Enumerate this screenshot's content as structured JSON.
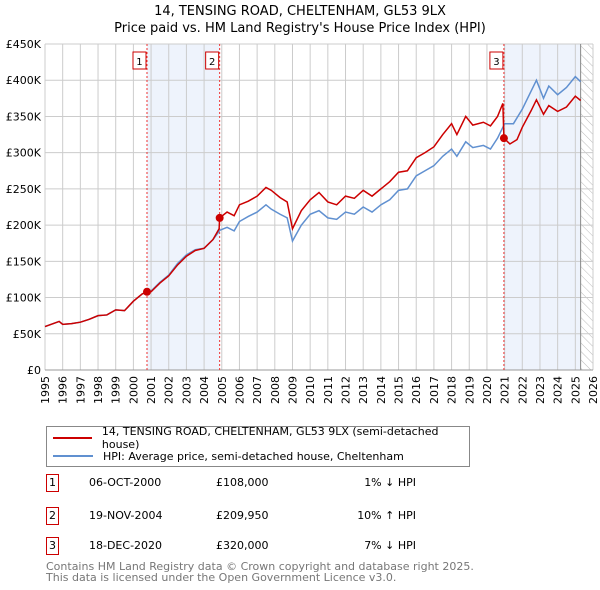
{
  "title": "14, TENSING ROAD, CHELTENHAM, GL53 9LX",
  "subtitle": "Price paid vs. HM Land Registry's House Price Index (HPI)",
  "colors": {
    "property": "#cc0000",
    "hpi": "#6090d0",
    "shade": "#eef3fc"
  },
  "chart_data": {
    "type": "line",
    "xlim": [
      1995,
      2026
    ],
    "ylim": [
      0,
      450000
    ],
    "x_ticks": [
      "1995",
      "1996",
      "1997",
      "1998",
      "1999",
      "2000",
      "2001",
      "2002",
      "2003",
      "2004",
      "2005",
      "2006",
      "2007",
      "2008",
      "2009",
      "2010",
      "2011",
      "2012",
      "2013",
      "2014",
      "2015",
      "2016",
      "2017",
      "2018",
      "2019",
      "2020",
      "2021",
      "2022",
      "2023",
      "2024",
      "2025",
      "2026"
    ],
    "y_ticks": [
      {
        "v": 0,
        "label": "£0"
      },
      {
        "v": 50000,
        "label": "£50K"
      },
      {
        "v": 100000,
        "label": "£100K"
      },
      {
        "v": 150000,
        "label": "£150K"
      },
      {
        "v": 200000,
        "label": "£200K"
      },
      {
        "v": 250000,
        "label": "£250K"
      },
      {
        "v": 300000,
        "label": "£300K"
      },
      {
        "v": 350000,
        "label": "£350K"
      },
      {
        "v": 400000,
        "label": "£400K"
      },
      {
        "v": 450000,
        "label": "£450K"
      }
    ],
    "grid": true,
    "forecast_from": 2025.3,
    "series": [
      {
        "name": "14, TENSING ROAD, CHELTENHAM, GL53 9LX (semi-detached house)",
        "color": "#cc0000",
        "points": [
          [
            1995,
            60
          ],
          [
            1995.8,
            67
          ],
          [
            1996,
            63
          ],
          [
            1996.5,
            64
          ],
          [
            1997,
            66
          ],
          [
            1997.5,
            70
          ],
          [
            1998,
            75
          ],
          [
            1998.5,
            76
          ],
          [
            1999,
            83
          ],
          [
            1999.5,
            82
          ],
          [
            2000,
            95
          ],
          [
            2000.5,
            105
          ],
          [
            2000.77,
            108
          ],
          [
            2001,
            108
          ],
          [
            2001.5,
            120
          ],
          [
            2002,
            130
          ],
          [
            2002.5,
            145
          ],
          [
            2003,
            157
          ],
          [
            2003.5,
            165
          ],
          [
            2004,
            168
          ],
          [
            2004.5,
            180
          ],
          [
            2004.85,
            195
          ],
          [
            2004.88,
            210
          ],
          [
            2005.3,
            218
          ],
          [
            2005.7,
            213
          ],
          [
            2006,
            228
          ],
          [
            2006.5,
            233
          ],
          [
            2007,
            240
          ],
          [
            2007.5,
            252
          ],
          [
            2007.8,
            248
          ],
          [
            2008.3,
            238
          ],
          [
            2008.7,
            232
          ],
          [
            2009,
            195
          ],
          [
            2009.5,
            220
          ],
          [
            2010,
            235
          ],
          [
            2010.5,
            245
          ],
          [
            2011,
            232
          ],
          [
            2011.5,
            228
          ],
          [
            2012,
            240
          ],
          [
            2012.5,
            237
          ],
          [
            2013,
            248
          ],
          [
            2013.5,
            240
          ],
          [
            2014,
            250
          ],
          [
            2014.5,
            260
          ],
          [
            2015,
            273
          ],
          [
            2015.5,
            275
          ],
          [
            2016,
            293
          ],
          [
            2016.5,
            300
          ],
          [
            2017,
            308
          ],
          [
            2017.5,
            325
          ],
          [
            2018,
            340
          ],
          [
            2018.3,
            325
          ],
          [
            2018.8,
            350
          ],
          [
            2019.2,
            338
          ],
          [
            2019.8,
            342
          ],
          [
            2020.2,
            337
          ],
          [
            2020.6,
            350
          ],
          [
            2020.9,
            368
          ],
          [
            2020.96,
            320
          ],
          [
            2021.3,
            312
          ],
          [
            2021.7,
            318
          ],
          [
            2022,
            335
          ],
          [
            2022.5,
            358
          ],
          [
            2022.8,
            373
          ],
          [
            2023.2,
            353
          ],
          [
            2023.5,
            365
          ],
          [
            2024,
            357
          ],
          [
            2024.5,
            363
          ],
          [
            2025,
            378
          ],
          [
            2025.3,
            372
          ]
        ]
      },
      {
        "name": "HPI: Average price, semi-detached house, Cheltenham",
        "color": "#6090d0",
        "points": [
          [
            1995,
            60
          ],
          [
            1995.8,
            67
          ],
          [
            1996,
            63
          ],
          [
            1996.5,
            64
          ],
          [
            1997,
            66
          ],
          [
            1997.5,
            70
          ],
          [
            1998,
            75
          ],
          [
            1998.5,
            76
          ],
          [
            1999,
            83
          ],
          [
            1999.5,
            82
          ],
          [
            2000,
            95
          ],
          [
            2000.5,
            105
          ],
          [
            2001,
            109
          ],
          [
            2001.5,
            121
          ],
          [
            2002,
            131
          ],
          [
            2002.5,
            147
          ],
          [
            2003,
            159
          ],
          [
            2003.5,
            166
          ],
          [
            2004,
            168
          ],
          [
            2004.5,
            180
          ],
          [
            2004.9,
            193
          ],
          [
            2005.3,
            197
          ],
          [
            2005.7,
            192
          ],
          [
            2006,
            205
          ],
          [
            2006.5,
            212
          ],
          [
            2007,
            218
          ],
          [
            2007.5,
            228
          ],
          [
            2007.8,
            222
          ],
          [
            2008.3,
            215
          ],
          [
            2008.7,
            210
          ],
          [
            2009,
            178
          ],
          [
            2009.5,
            200
          ],
          [
            2010,
            215
          ],
          [
            2010.5,
            220
          ],
          [
            2011,
            210
          ],
          [
            2011.5,
            208
          ],
          [
            2012,
            218
          ],
          [
            2012.5,
            215
          ],
          [
            2013,
            225
          ],
          [
            2013.5,
            218
          ],
          [
            2014,
            228
          ],
          [
            2014.5,
            235
          ],
          [
            2015,
            248
          ],
          [
            2015.5,
            250
          ],
          [
            2016,
            268
          ],
          [
            2016.5,
            275
          ],
          [
            2017,
            282
          ],
          [
            2017.5,
            295
          ],
          [
            2018,
            305
          ],
          [
            2018.3,
            295
          ],
          [
            2018.8,
            315
          ],
          [
            2019.2,
            307
          ],
          [
            2019.8,
            310
          ],
          [
            2020.2,
            305
          ],
          [
            2020.6,
            320
          ],
          [
            2021,
            340
          ],
          [
            2021.5,
            340
          ],
          [
            2022,
            360
          ],
          [
            2022.5,
            385
          ],
          [
            2022.8,
            400
          ],
          [
            2023.2,
            375
          ],
          [
            2023.5,
            392
          ],
          [
            2024,
            380
          ],
          [
            2024.5,
            390
          ],
          [
            2025,
            405
          ],
          [
            2025.3,
            398
          ]
        ]
      }
    ],
    "sales": [
      {
        "label": "1",
        "x": 2000.77,
        "y": 108000
      },
      {
        "label": "2",
        "x": 2004.88,
        "y": 209950
      },
      {
        "label": "3",
        "x": 2020.96,
        "y": 320000
      }
    ]
  },
  "legend": [
    "14, TENSING ROAD, CHELTENHAM, GL53 9LX (semi-detached house)",
    "HPI: Average price, semi-detached house, Cheltenham"
  ],
  "transactions": [
    {
      "num": "1",
      "date": "06-OCT-2000",
      "price": "£108,000",
      "hpi": "1% ↓ HPI"
    },
    {
      "num": "2",
      "date": "19-NOV-2004",
      "price": "£209,950",
      "hpi": "10% ↑ HPI"
    },
    {
      "num": "3",
      "date": "18-DEC-2020",
      "price": "£320,000",
      "hpi": "7% ↓ HPI"
    }
  ],
  "footer": [
    "Contains HM Land Registry data © Crown copyright and database right 2025.",
    "This data is licensed under the Open Government Licence v3.0."
  ]
}
